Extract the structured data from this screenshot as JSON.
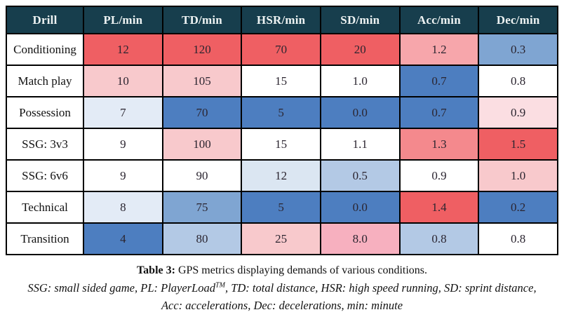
{
  "colors": {
    "header_bg": "#173e4d",
    "header_text": "#eef3f3",
    "border": "#000000",
    "scale_strong_red": "#ef5f63",
    "scale_salmon": "#f4898d",
    "scale_light_salmon": "#f7a6ab",
    "scale_pink": "#f8c9cc",
    "scale_rose_pink": "#f7b0bf",
    "scale_pale_pink": "#fbdee2",
    "scale_white": "#ffffff",
    "scale_pale_blue": "#e3ebf6",
    "scale_lighter_blue": "#dbe6f2",
    "scale_light_blue": "#b3c9e5",
    "scale_mid_blue": "#7fa5d2",
    "scale_strong_blue": "#4d7ec0"
  },
  "table": {
    "headers": [
      "Drill",
      "PL/min",
      "TD/min",
      "HSR/min",
      "SD/min",
      "Acc/min",
      "Dec/min"
    ],
    "rows": [
      {
        "drill": "Conditioning",
        "cells": [
          {
            "value": "12",
            "color": "#ef5f63"
          },
          {
            "value": "120",
            "color": "#ef5f63"
          },
          {
            "value": "70",
            "color": "#ef5f63"
          },
          {
            "value": "20",
            "color": "#ef5f63"
          },
          {
            "value": "1.2",
            "color": "#f7a6ab"
          },
          {
            "value": "0.3",
            "color": "#7fa5d2"
          }
        ]
      },
      {
        "drill": "Match play",
        "cells": [
          {
            "value": "10",
            "color": "#f8c9cc"
          },
          {
            "value": "105",
            "color": "#f8c9cc"
          },
          {
            "value": "15",
            "color": "#ffffff"
          },
          {
            "value": "1.0",
            "color": "#ffffff"
          },
          {
            "value": "0.7",
            "color": "#4d7ec0"
          },
          {
            "value": "0.8",
            "color": "#ffffff"
          }
        ]
      },
      {
        "drill": "Possession",
        "cells": [
          {
            "value": "7",
            "color": "#e3ebf6"
          },
          {
            "value": "70",
            "color": "#4d7ec0"
          },
          {
            "value": "5",
            "color": "#4d7ec0"
          },
          {
            "value": "0.0",
            "color": "#4d7ec0"
          },
          {
            "value": "0.7",
            "color": "#4d7ec0"
          },
          {
            "value": "0.9",
            "color": "#fbdee2"
          }
        ]
      },
      {
        "drill": "SSG: 3v3",
        "cells": [
          {
            "value": "9",
            "color": "#ffffff"
          },
          {
            "value": "100",
            "color": "#f8c9cc"
          },
          {
            "value": "15",
            "color": "#ffffff"
          },
          {
            "value": "1.1",
            "color": "#ffffff"
          },
          {
            "value": "1.3",
            "color": "#f4898d"
          },
          {
            "value": "1.5",
            "color": "#ef5f63"
          }
        ]
      },
      {
        "drill": "SSG: 6v6",
        "cells": [
          {
            "value": "9",
            "color": "#ffffff"
          },
          {
            "value": "90",
            "color": "#ffffff"
          },
          {
            "value": "12",
            "color": "#dbe6f2"
          },
          {
            "value": "0.5",
            "color": "#b3c9e5"
          },
          {
            "value": "0.9",
            "color": "#ffffff"
          },
          {
            "value": "1.0",
            "color": "#f8c9cc"
          }
        ]
      },
      {
        "drill": "Technical",
        "cells": [
          {
            "value": "8",
            "color": "#e3ebf6"
          },
          {
            "value": "75",
            "color": "#7fa5d2"
          },
          {
            "value": "5",
            "color": "#4d7ec0"
          },
          {
            "value": "0.0",
            "color": "#4d7ec0"
          },
          {
            "value": "1.4",
            "color": "#ef5f63"
          },
          {
            "value": "0.2",
            "color": "#4d7ec0"
          }
        ]
      },
      {
        "drill": "Transition",
        "cells": [
          {
            "value": "4",
            "color": "#4d7ec0"
          },
          {
            "value": "80",
            "color": "#b3c9e5"
          },
          {
            "value": "25",
            "color": "#f8c9cc"
          },
          {
            "value": "8.0",
            "color": "#f7b0bf"
          },
          {
            "value": "0.8",
            "color": "#b3c9e5"
          },
          {
            "value": "0.8",
            "color": "#ffffff"
          }
        ]
      }
    ]
  },
  "caption": {
    "label": "Table 3:",
    "text": " GPS metrics displaying demands of various conditions.",
    "footnote_pre": "SSG: small sided game, PL: PlayerLoad",
    "footnote_sup": "TM",
    "footnote_post": ", TD: total distance, HSR: high speed running, SD: sprint distance,",
    "footnote_line2": "Acc: accelerations, Dec: decelerations, min: minute"
  },
  "chart_data": {
    "type": "table",
    "title": "Table 3: GPS metrics displaying demands of various conditions.",
    "columns": [
      "Drill",
      "PL/min",
      "TD/min",
      "HSR/min",
      "SD/min",
      "Acc/min",
      "Dec/min"
    ],
    "rows": [
      [
        "Conditioning",
        12,
        120,
        70,
        20,
        1.2,
        0.3
      ],
      [
        "Match play",
        10,
        105,
        15,
        1.0,
        0.7,
        0.8
      ],
      [
        "Possession",
        7,
        70,
        5,
        0.0,
        0.7,
        0.9
      ],
      [
        "SSG: 3v3",
        9,
        100,
        15,
        1.1,
        1.3,
        1.5
      ],
      [
        "SSG: 6v6",
        9,
        90,
        12,
        0.5,
        0.9,
        1.0
      ],
      [
        "Technical",
        8,
        75,
        5,
        0.0,
        1.4,
        0.2
      ],
      [
        "Transition",
        4,
        80,
        25,
        8.0,
        0.8,
        0.8
      ]
    ],
    "legend_note": "cell shading: diverging red (high) to blue (low) per column"
  }
}
